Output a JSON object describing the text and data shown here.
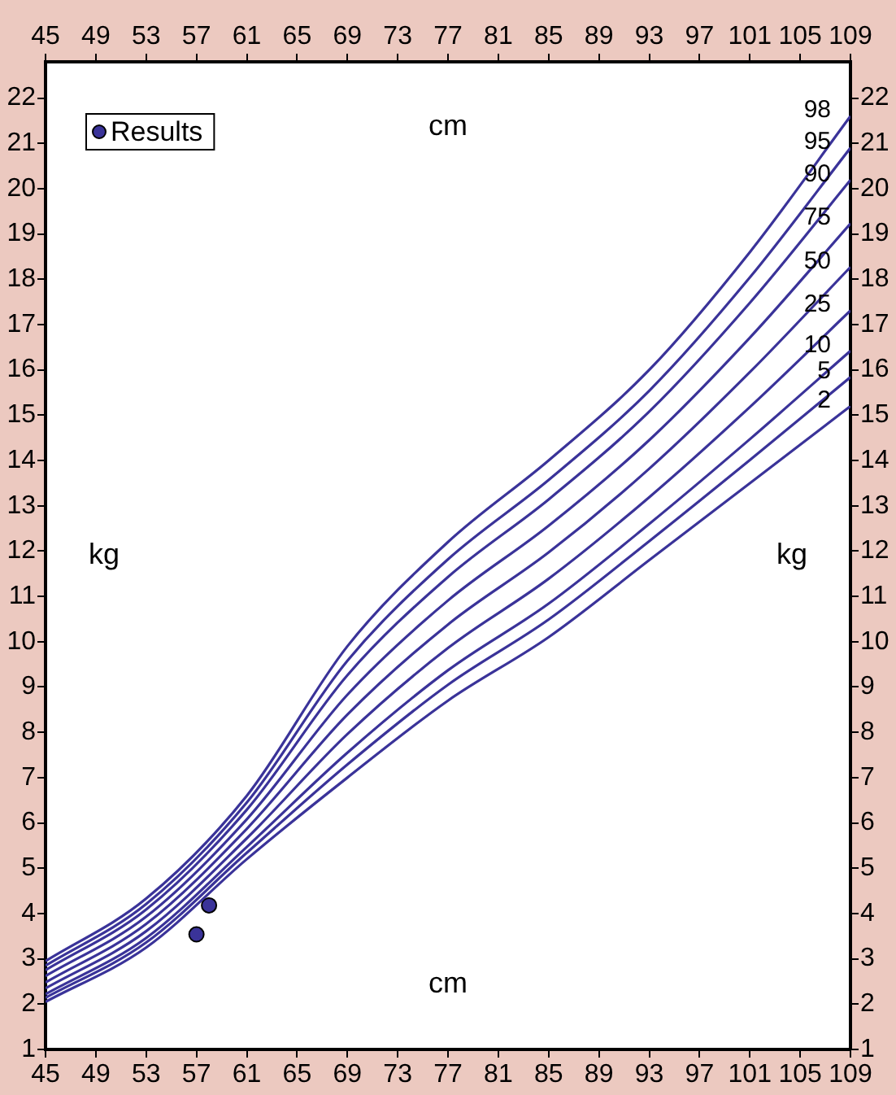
{
  "chart_data": {
    "type": "line",
    "xlabel": "cm",
    "x2label": "cm",
    "ylabel": "kg",
    "y2label": "kg",
    "x": [
      45,
      53,
      61,
      69,
      77,
      85,
      93,
      101,
      109
    ],
    "series": [
      {
        "name": "98",
        "color": "#3a3399",
        "values": [
          2.95,
          4.33,
          6.6,
          9.9,
          12.2,
          14.0,
          16.0,
          18.6,
          21.6
        ]
      },
      {
        "name": "95",
        "color": "#3a3399",
        "values": [
          2.85,
          4.21,
          6.45,
          9.58,
          11.82,
          13.57,
          15.54,
          18.04,
          20.9
        ]
      },
      {
        "name": "90",
        "color": "#3a3399",
        "values": [
          2.75,
          4.09,
          6.29,
          9.26,
          11.43,
          13.14,
          15.08,
          17.48,
          20.19
        ]
      },
      {
        "name": "75",
        "color": "#3a3399",
        "values": [
          2.62,
          3.93,
          6.08,
          8.83,
          10.91,
          12.56,
          14.45,
          16.71,
          19.23
        ]
      },
      {
        "name": "50",
        "color": "#3a3399",
        "values": [
          2.48,
          3.77,
          5.87,
          8.39,
          10.38,
          11.97,
          13.82,
          15.95,
          18.27
        ]
      },
      {
        "name": "25",
        "color": "#3a3399",
        "values": [
          2.35,
          3.61,
          5.66,
          7.96,
          9.86,
          11.39,
          13.19,
          15.18,
          17.31
        ]
      },
      {
        "name": "10",
        "color": "#3a3399",
        "values": [
          2.22,
          3.46,
          5.47,
          7.55,
          9.37,
          10.84,
          12.6,
          14.47,
          16.42
        ]
      },
      {
        "name": "5",
        "color": "#3a3399",
        "values": [
          2.14,
          3.36,
          5.34,
          7.29,
          9.05,
          10.49,
          12.22,
          14.01,
          15.84
        ]
      },
      {
        "name": "2",
        "color": "#3a3399",
        "values": [
          2.05,
          3.25,
          5.2,
          7.0,
          8.7,
          10.1,
          11.8,
          13.5,
          15.2
        ]
      },
      {
        "name": "Results",
        "type": "scatter",
        "marker": "circle",
        "color": "#3a3399",
        "x": [
          57.0,
          58.0
        ],
        "values": [
          3.54,
          4.18
        ]
      }
    ],
    "xlim": [
      45,
      109
    ],
    "xticks": [
      45,
      49,
      53,
      57,
      61,
      65,
      69,
      73,
      77,
      81,
      85,
      89,
      93,
      97,
      101,
      105,
      109
    ],
    "x2lim": [
      45,
      109
    ],
    "x2ticks": [
      45,
      49,
      53,
      57,
      61,
      65,
      69,
      73,
      77,
      81,
      85,
      89,
      93,
      97,
      101,
      105,
      109
    ],
    "ylim": [
      1,
      22.8
    ],
    "yticks": [
      1,
      2,
      3,
      4,
      5,
      6,
      7,
      8,
      9,
      10,
      11,
      12,
      13,
      14,
      15,
      16,
      17,
      18,
      19,
      20,
      21,
      22
    ],
    "y2lim": [
      1,
      22.8
    ],
    "y2ticks": [
      1,
      2,
      3,
      4,
      5,
      6,
      7,
      8,
      9,
      10,
      11,
      12,
      13,
      14,
      15,
      16,
      17,
      18,
      19,
      20,
      21,
      22
    ],
    "grid": false,
    "legend": "top left",
    "marker": "none",
    "line_style": "solid"
  }
}
